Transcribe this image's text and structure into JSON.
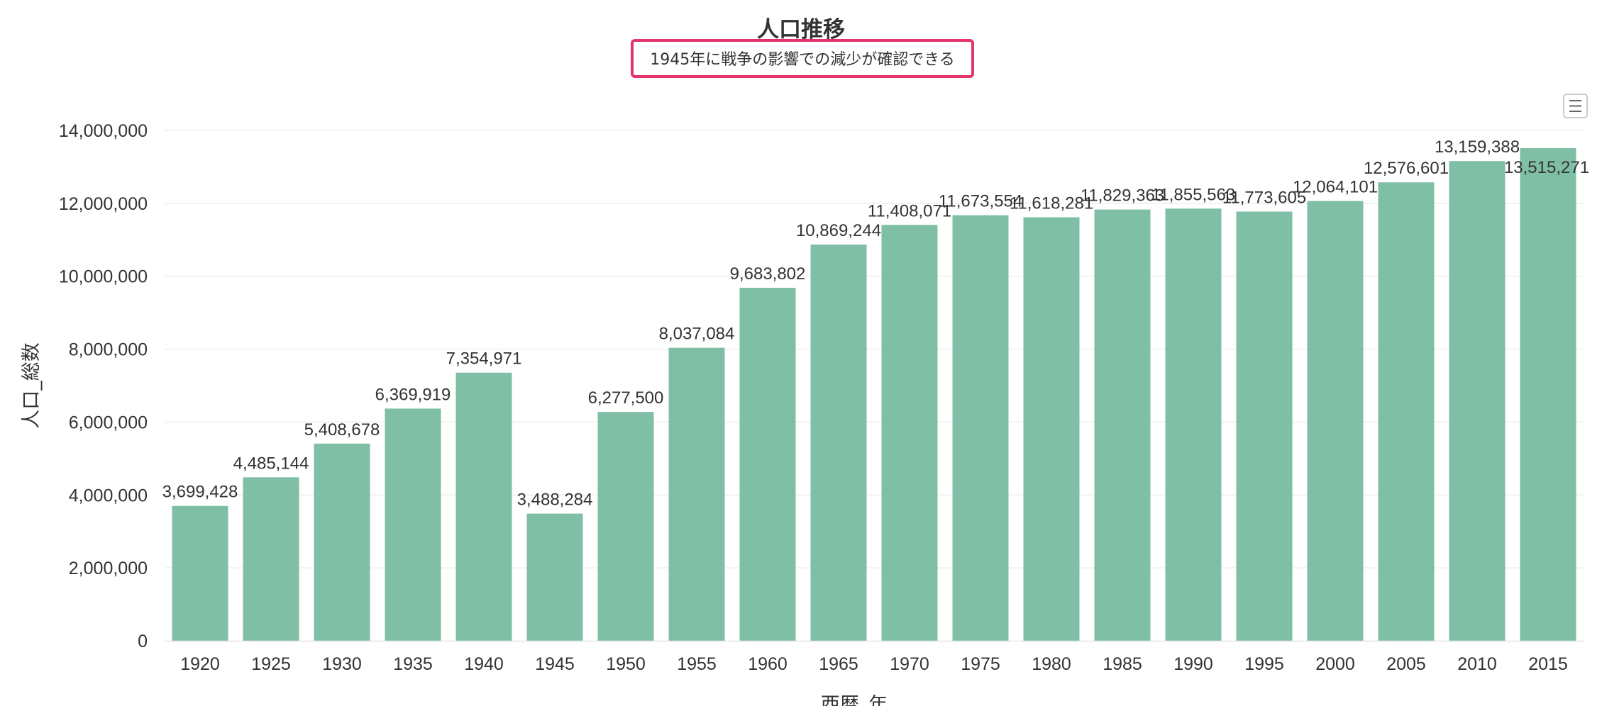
{
  "colors": {
    "bar": "#7fbfa6",
    "highlight_border": "#e4356a",
    "grid": "#eeeeee",
    "text": "#333333",
    "menu_icon": "#666666"
  },
  "menu": {
    "icon": "hamburger-menu-icon"
  },
  "chart_data": {
    "type": "bar",
    "title": "人口推移",
    "subtitle": "1945年に戦争の影響での減少が確認できる",
    "xlabel": "西暦_年",
    "ylabel": "人口_総数",
    "ylim": [
      0,
      14000000
    ],
    "yticks": [
      0,
      2000000,
      4000000,
      6000000,
      8000000,
      10000000,
      12000000,
      14000000
    ],
    "ytick_labels": [
      "0",
      "2,000,000",
      "4,000,000",
      "6,000,000",
      "8,000,000",
      "10,000,000",
      "12,000,000",
      "14,000,000"
    ],
    "grid": true,
    "legend": false,
    "categories": [
      "1920",
      "1925",
      "1930",
      "1935",
      "1940",
      "1945",
      "1950",
      "1955",
      "1960",
      "1965",
      "1970",
      "1975",
      "1980",
      "1985",
      "1990",
      "1995",
      "2000",
      "2005",
      "2010",
      "2015"
    ],
    "values": [
      3699428,
      4485144,
      5408678,
      6369919,
      7354971,
      3488284,
      6277500,
      8037084,
      9683802,
      10869244,
      11408071,
      11673554,
      11618281,
      11829363,
      11855563,
      11773605,
      12064101,
      12576601,
      13159388,
      13515271
    ],
    "value_labels": [
      "3,699,428",
      "4,485,144",
      "5,408,678",
      "6,369,919",
      "7,354,971",
      "3,488,284",
      "6,277,500",
      "8,037,084",
      "9,683,802",
      "10,869,244",
      "11,408,071",
      "11,673,554",
      "11,618,281",
      "11,829,363",
      "11,855,563",
      "11,773,605",
      "12,064,101",
      "12,576,601",
      "13,159,388",
      "13,515,271"
    ]
  }
}
